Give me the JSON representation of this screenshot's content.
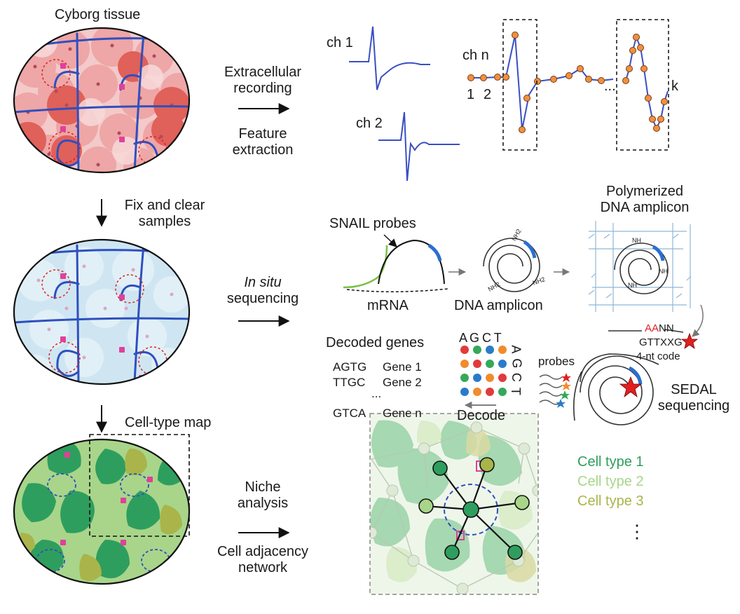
{
  "panels": {
    "cyborg_title": "Cyborg tissue",
    "step1": {
      "line1": "Extracellular",
      "line2": "recording",
      "line3": "Feature",
      "line4": "extraction"
    },
    "fix": {
      "line1": "Fix and clear",
      "line2": "samples"
    },
    "insitu": {
      "line1a": "In situ",
      "line2": "sequencing"
    },
    "celltype_map": "Cell-type map",
    "niche": {
      "line1": "Niche",
      "line2": "analysis",
      "line3": "Cell adjacency",
      "line4": "network"
    }
  },
  "recording": {
    "ch1": "ch 1",
    "ch2": "ch 2",
    "chn": "ch n",
    "idx1": "1",
    "idx2": "2",
    "ellipsis": "...",
    "idxk": "k"
  },
  "sequencing": {
    "snail": "SNAIL probes",
    "mrna": "mRNA",
    "dna_amplicon": "DNA amplicon",
    "poly1": "Polymerized",
    "poly2": "DNA amplicon",
    "nh2_a": "NH2",
    "nh2_b": "NH2",
    "nh2_c": "NH2",
    "nh_a": "NH",
    "nh_b": "NH",
    "nh_c": "NH",
    "aann_red": "AA",
    "aann_black": "NN",
    "gttxxg": "GTTXXG",
    "code": "4-nt code",
    "sedal1": "SEDAL",
    "sedal2": "sequencing",
    "probes": "probes",
    "decode": "Decode",
    "grid_top": "A G C T",
    "grid_side": [
      "A",
      "G",
      "C",
      "T"
    ]
  },
  "decoded": {
    "title": "Decoded genes",
    "rows": [
      {
        "code": "AGTG",
        "gene": "Gene 1"
      },
      {
        "code": "TTGC",
        "gene": "Gene 2"
      },
      {
        "code": "...",
        "gene": ""
      },
      {
        "code": "GTCA",
        "gene": "Gene n"
      }
    ]
  },
  "legend": {
    "items": [
      {
        "label": "Cell type 1",
        "color": "#2e9e5e"
      },
      {
        "label": "Cell type 2",
        "color": "#a8d58a"
      },
      {
        "label": "Cell type 3",
        "color": "#a9b54a"
      }
    ],
    "more": "⋮"
  },
  "colors": {
    "electrode": "#2f4fbf",
    "sample_point": "#f09040",
    "probe_green": "#7ac143",
    "red_star": "#e02020",
    "dot_red": "#e23a3a",
    "dot_green": "#36a85a",
    "dot_blue": "#2a7cc8",
    "dot_orange": "#f08c2c"
  }
}
